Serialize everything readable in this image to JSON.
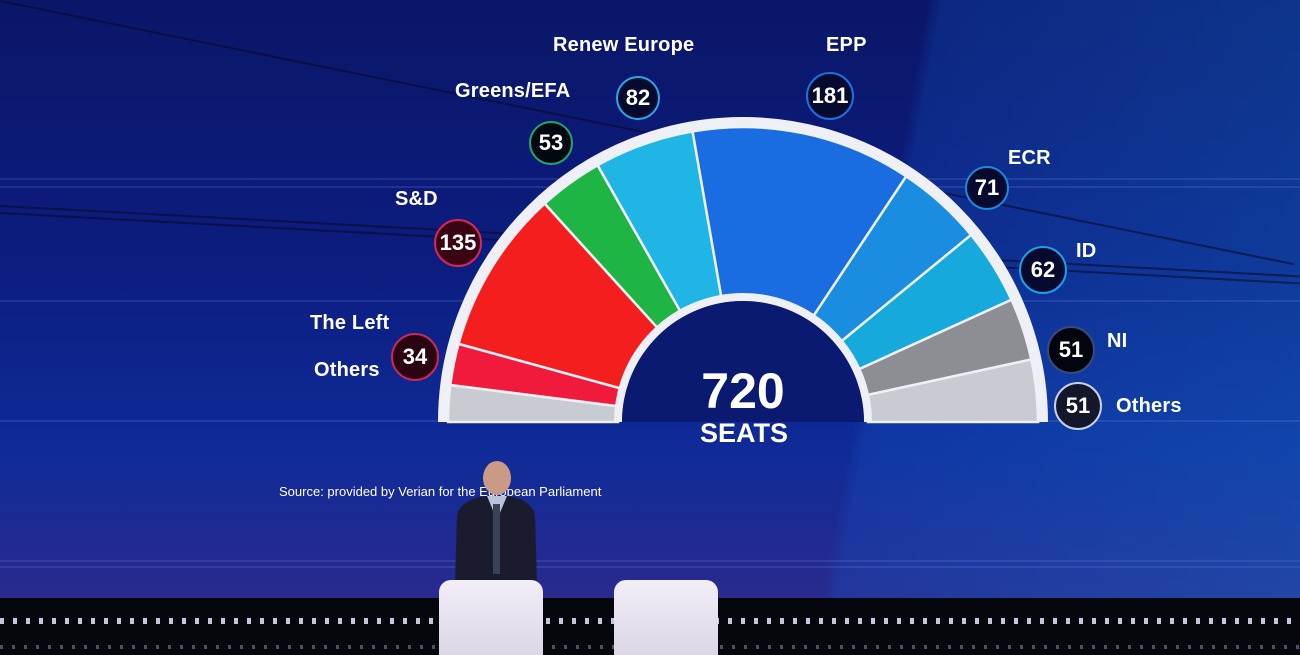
{
  "chart_data": {
    "type": "pie",
    "variant": "hemicycle",
    "title": "",
    "total_label": "720",
    "total_sublabel": "SEATS",
    "total": 720,
    "source": "Source: provided by Verian for the European Parliament",
    "categories": [
      "Others (left)",
      "The Left",
      "S&D",
      "Greens/EFA",
      "Renew Europe",
      "EPP",
      "ECR",
      "ID",
      "NI",
      "Others"
    ],
    "series": [
      {
        "name": "Seats",
        "values": [
          null,
          34,
          135,
          53,
          82,
          181,
          71,
          62,
          51,
          51
        ]
      }
    ],
    "segments": [
      {
        "name": "Others",
        "value": null,
        "color": "#c9cbd3",
        "side": "left",
        "visual_weight": 30
      },
      {
        "name": "The Left",
        "value": 34,
        "color": "#f01a3c"
      },
      {
        "name": "S&D",
        "value": 135,
        "color": "#f41e1e"
      },
      {
        "name": "Greens/EFA",
        "value": 53,
        "color": "#1fb545"
      },
      {
        "name": "Renew Europe",
        "value": 82,
        "color": "#1fb6e6"
      },
      {
        "name": "EPP",
        "value": 181,
        "color": "#1a6de0"
      },
      {
        "name": "ECR",
        "value": 71,
        "color": "#1a8de0"
      },
      {
        "name": "ID",
        "value": 62,
        "color": "#16a9dc"
      },
      {
        "name": "NI",
        "value": 51,
        "color": "#8c8e94"
      },
      {
        "name": "Others",
        "value": 51,
        "color": "#c9cbd3"
      }
    ]
  },
  "labels": {
    "renew": {
      "name": "Renew Europe",
      "seats": "82"
    },
    "greens": {
      "name": "Greens/EFA",
      "seats": "53"
    },
    "epp": {
      "name": "EPP",
      "seats": "181"
    },
    "ecr": {
      "name": "ECR",
      "seats": "71"
    },
    "sd": {
      "name": "S&D",
      "seats": "135"
    },
    "left": {
      "name": "The Left",
      "seats": "34"
    },
    "others_left": {
      "name": "Others"
    },
    "id": {
      "name": "ID",
      "seats": "62"
    },
    "ni": {
      "name": "NI",
      "seats": "51"
    },
    "others_right": {
      "name": "Others",
      "seats": "51"
    }
  },
  "center": {
    "number": "720",
    "unit": "SEATS"
  },
  "source": "Source: provided by Verian for the European Parliament"
}
